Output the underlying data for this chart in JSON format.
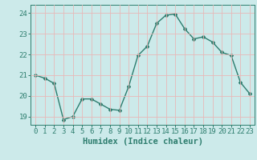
{
  "x": [
    0,
    1,
    2,
    3,
    4,
    5,
    6,
    7,
    8,
    9,
    10,
    11,
    12,
    13,
    14,
    15,
    16,
    17,
    18,
    19,
    20,
    21,
    22,
    23
  ],
  "y": [
    21.0,
    20.85,
    20.6,
    18.85,
    19.0,
    19.85,
    19.85,
    19.6,
    19.35,
    19.3,
    20.45,
    21.95,
    22.4,
    23.5,
    23.9,
    23.95,
    23.25,
    22.75,
    22.85,
    22.6,
    22.1,
    21.95,
    20.65,
    20.1
  ],
  "line_color": "#2d7d6e",
  "marker": "D",
  "marker_size": 2.0,
  "linewidth": 1.0,
  "xlabel": "Humidex (Indice chaleur)",
  "xlim": [
    -0.5,
    23.5
  ],
  "ylim": [
    18.6,
    24.4
  ],
  "yticks": [
    19,
    20,
    21,
    22,
    23,
    24
  ],
  "xticks": [
    0,
    1,
    2,
    3,
    4,
    5,
    6,
    7,
    8,
    9,
    10,
    11,
    12,
    13,
    14,
    15,
    16,
    17,
    18,
    19,
    20,
    21,
    22,
    23
  ],
  "bg_color": "#cceaea",
  "grid_color": "#e8b8b8",
  "tick_label_color": "#2d7d6e",
  "axis_color": "#2d7d6e",
  "xlabel_color": "#2d7d6e",
  "xlabel_fontsize": 7.5,
  "tick_fontsize": 6.5
}
